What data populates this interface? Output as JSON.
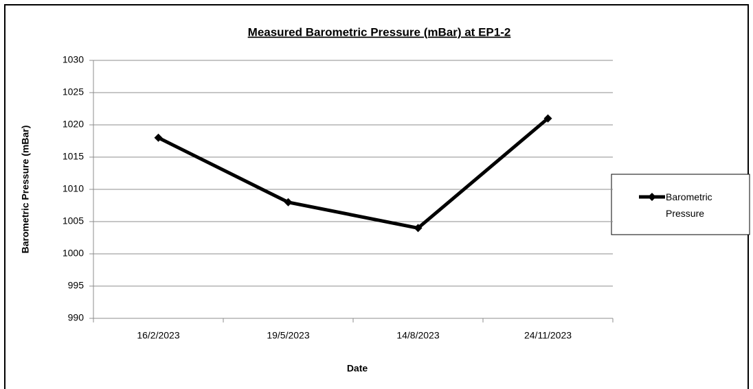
{
  "chart_data": {
    "type": "line",
    "title": "Measured Barometric Pressure (mBar) at EP1-2",
    "x_label": "Date",
    "y_label": "Barometric Pressure (mBar)",
    "categories": [
      "16/2/2023",
      "19/5/2023",
      "14/8/2023",
      "24/11/2023"
    ],
    "series": [
      {
        "name": "Barometric Pressure",
        "color": "#000000",
        "values": [
          1018,
          1008,
          1004,
          1021
        ]
      }
    ],
    "ylim": [
      990,
      1030
    ],
    "yticks": [
      990,
      995,
      1000,
      1005,
      1010,
      1015,
      1020,
      1025,
      1030
    ],
    "grid": true,
    "legend": "right"
  }
}
